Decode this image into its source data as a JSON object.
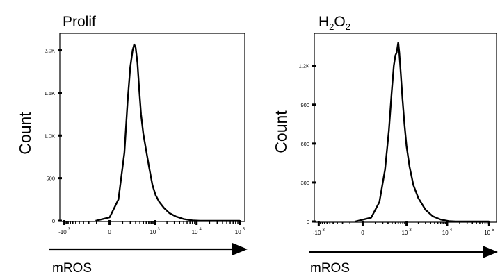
{
  "chart_data": [
    {
      "type": "histogram",
      "title": "Prolif",
      "xlabel": "mROS",
      "ylabel": "Count",
      "x_scale": "biexponential",
      "ylim": [
        0,
        2200
      ],
      "y_ticks": [
        {
          "value": 0,
          "label": "0"
        },
        {
          "value": 500,
          "label": "500"
        },
        {
          "value": 1000,
          "label": "1.0K"
        },
        {
          "value": 1500,
          "label": "1.5K"
        },
        {
          "value": 2000,
          "label": "2.0K"
        }
      ],
      "x_ticks": [
        {
          "value": -1000,
          "base": "-10",
          "exp": "3"
        },
        {
          "value": 0,
          "base": "0",
          "exp": ""
        },
        {
          "value": 1000,
          "base": "10",
          "exp": "3"
        },
        {
          "value": 10000,
          "base": "10",
          "exp": "4"
        },
        {
          "value": 100000,
          "base": "10",
          "exp": "5"
        }
      ],
      "curve": [
        [
          -110,
          0
        ],
        [
          0,
          40
        ],
        [
          60,
          250
        ],
        [
          120,
          800
        ],
        [
          160,
          1400
        ],
        [
          200,
          1800
        ],
        [
          240,
          2000
        ],
        [
          270,
          2070
        ],
        [
          300,
          2030
        ],
        [
          340,
          1850
        ],
        [
          380,
          1550
        ],
        [
          430,
          1250
        ],
        [
          500,
          1020
        ],
        [
          600,
          820
        ],
        [
          720,
          620
        ],
        [
          870,
          420
        ],
        [
          1050,
          300
        ],
        [
          1300,
          220
        ],
        [
          1700,
          150
        ],
        [
          2300,
          90
        ],
        [
          3300,
          50
        ],
        [
          5000,
          20
        ],
        [
          8000,
          5
        ],
        [
          12000,
          0
        ],
        [
          100000,
          0
        ]
      ]
    },
    {
      "type": "histogram",
      "title_parts": {
        "base1": "H",
        "sub1": "2",
        "base2": "O",
        "sub2": "2"
      },
      "xlabel": "mROS",
      "ylabel": "Count",
      "x_scale": "biexponential",
      "ylim": [
        0,
        1450
      ],
      "y_ticks": [
        {
          "value": 0,
          "label": "0"
        },
        {
          "value": 300,
          "label": "300"
        },
        {
          "value": 600,
          "label": "600"
        },
        {
          "value": 900,
          "label": "900"
        },
        {
          "value": 1200,
          "label": "1.2K"
        }
      ],
      "x_ticks": [
        {
          "value": -1000,
          "base": "-10",
          "exp": "3"
        },
        {
          "value": 0,
          "base": "0",
          "exp": ""
        },
        {
          "value": 1000,
          "base": "10",
          "exp": "3"
        },
        {
          "value": 10000,
          "base": "10",
          "exp": "4"
        },
        {
          "value": 100000,
          "base": "10",
          "exp": "5"
        }
      ],
      "curve": [
        [
          -50,
          0
        ],
        [
          60,
          30
        ],
        [
          150,
          150
        ],
        [
          240,
          400
        ],
        [
          320,
          700
        ],
        [
          390,
          1000
        ],
        [
          450,
          1200
        ],
        [
          500,
          1280
        ],
        [
          540,
          1300
        ],
        [
          570,
          1340
        ],
        [
          600,
          1380
        ],
        [
          640,
          1300
        ],
        [
          700,
          1150
        ],
        [
          780,
          950
        ],
        [
          880,
          750
        ],
        [
          1000,
          580
        ],
        [
          1200,
          420
        ],
        [
          1500,
          280
        ],
        [
          2000,
          180
        ],
        [
          3000,
          90
        ],
        [
          4500,
          40
        ],
        [
          7000,
          15
        ],
        [
          11000,
          3
        ],
        [
          16000,
          0
        ],
        [
          100000,
          0
        ]
      ]
    }
  ],
  "colors": {
    "line": "#000000",
    "axis": "#000000"
  }
}
